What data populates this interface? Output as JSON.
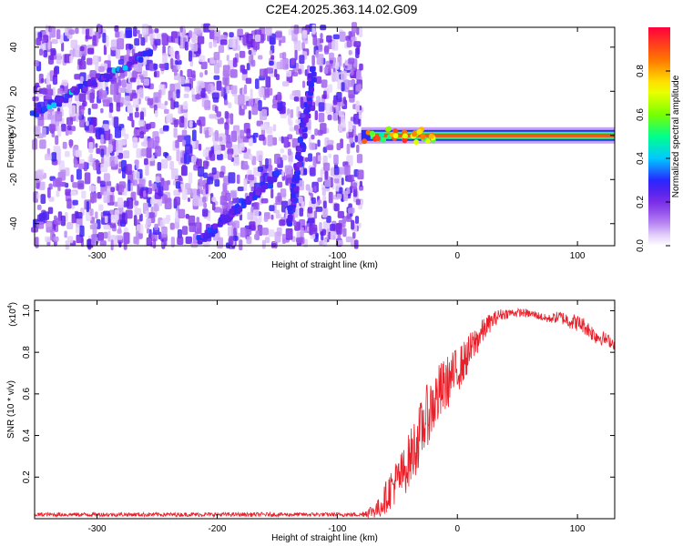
{
  "figure": {
    "title": "C2E4.2025.363.14.02.G09"
  },
  "chart_data": [
    {
      "type": "heatmap",
      "title": "C2E4.2025.363.14.02.G09",
      "xlabel": "Height of straight line (km)",
      "ylabel": "Frequency (Hz)",
      "xlim": [
        -352,
        131
      ],
      "ylim": [
        -50,
        49
      ],
      "xticks": [
        -300,
        -200,
        -100,
        0,
        100
      ],
      "yticks": [
        -40,
        -20,
        0,
        20,
        40
      ],
      "grid": false,
      "noise_region": {
        "x_range": [
          -352,
          -80
        ],
        "description_values": "low amplitude 0.2-0.6 scattered"
      },
      "signal_band": {
        "x_range": [
          -80,
          131
        ],
        "center_frequency": 0,
        "peak_amplitude": 1.0
      },
      "tracks": [
        {
          "from": [
            -352,
            10
          ],
          "to": [
            -255,
            38
          ]
        },
        {
          "from": [
            -215,
            -48
          ],
          "to": [
            -150,
            -18
          ]
        },
        {
          "from": [
            -140,
            -40
          ],
          "to": [
            -120,
            30
          ]
        }
      ],
      "colorbar": {
        "label": "Normalized spectral amplitude",
        "ticks": [
          0.0,
          0.2,
          0.4,
          0.6,
          0.8
        ],
        "range": [
          0,
          1
        ]
      }
    },
    {
      "type": "line",
      "xlabel": "Height of straight line (km)",
      "ylabel": "SNR (10 * v/v)",
      "scale_label": "(x10",
      "scale_exp": "4",
      "scale_close": ")",
      "xlim": [
        -352,
        131
      ],
      "ylim": [
        0,
        1.05
      ],
      "xticks": [
        -300,
        -200,
        -100,
        0,
        100
      ],
      "yticks": [
        0.2,
        0.4,
        0.6,
        0.8,
        1.0
      ],
      "grid": false,
      "series": [
        {
          "color": "#e8202a",
          "x": [
            -352,
            -300,
            -250,
            -200,
            -150,
            -100,
            -80,
            -65,
            -55,
            -45,
            -35,
            -25,
            -15,
            -5,
            5,
            15,
            25,
            35,
            45,
            55,
            65,
            75,
            85,
            95,
            105,
            115,
            125,
            131
          ],
          "values": [
            0.02,
            0.02,
            0.02,
            0.02,
            0.02,
            0.02,
            0.02,
            0.05,
            0.15,
            0.22,
            0.35,
            0.5,
            0.6,
            0.68,
            0.75,
            0.85,
            0.93,
            0.98,
            0.99,
            0.99,
            0.98,
            0.96,
            0.97,
            0.95,
            0.93,
            0.88,
            0.86,
            0.84
          ],
          "noise": [
            0.01,
            0.01,
            0.01,
            0.01,
            0.01,
            0.01,
            0.01,
            0.05,
            0.1,
            0.12,
            0.15,
            0.15,
            0.15,
            0.12,
            0.1,
            0.08,
            0.05,
            0.03,
            0.02,
            0.02,
            0.02,
            0.02,
            0.03,
            0.04,
            0.04,
            0.04,
            0.03,
            0.03
          ]
        }
      ]
    }
  ]
}
